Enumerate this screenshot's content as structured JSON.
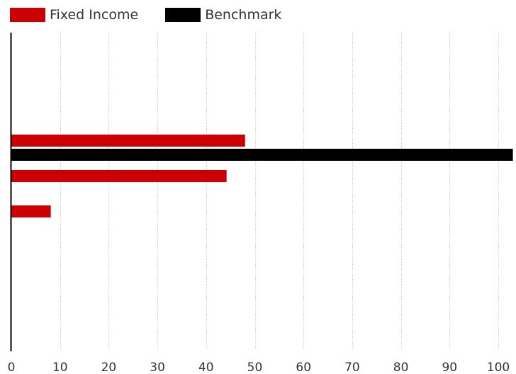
{
  "chart_data": {
    "type": "bar",
    "orientation": "horizontal",
    "title": "",
    "xlabel": "",
    "ylabel": "",
    "xlim": [
      0,
      103
    ],
    "xticks": [
      0,
      10,
      20,
      30,
      40,
      50,
      60,
      70,
      80,
      90,
      100
    ],
    "xtick_labels": [
      "0",
      "10",
      "20",
      "30",
      "40",
      "50",
      "60",
      "70",
      "80",
      "90",
      "100"
    ],
    "grid": "vertical-dotted",
    "legend_placement": "top-left",
    "categories": [
      "",
      "",
      "",
      "",
      ""
    ],
    "series": [
      {
        "name": "Fixed Income",
        "color": "#cc0000",
        "values": [
          0,
          48,
          44.2,
          8.1,
          0
        ]
      },
      {
        "name": "Benchmark",
        "color": "#000000",
        "values": [
          0,
          103,
          0,
          0,
          0
        ]
      }
    ]
  }
}
